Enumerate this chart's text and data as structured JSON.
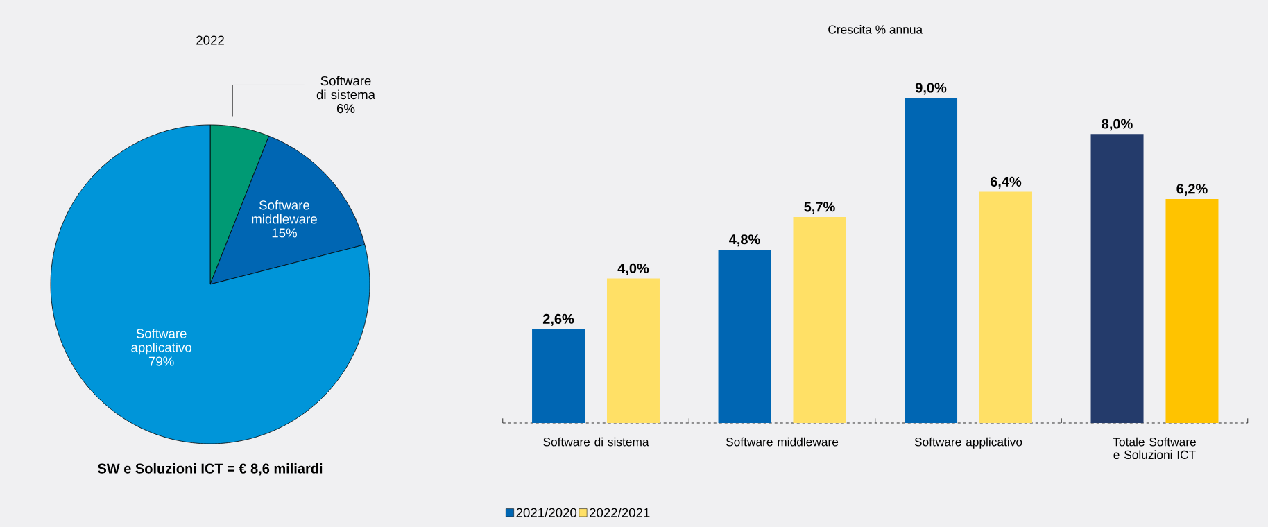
{
  "chart_data": [
    {
      "type": "pie",
      "title": "2022",
      "categories": [
        "Software di sistema",
        "Software middleware",
        "Software applicativo"
      ],
      "values": [
        6,
        15,
        79
      ],
      "value_labels": [
        "6%",
        "15%",
        "79%"
      ],
      "colors": [
        "#009a74",
        "#0066b3",
        "#0095d9"
      ],
      "annotations": [
        "SW e Soluzioni ICT = € 8,6 miliardi"
      ]
    },
    {
      "type": "bar",
      "title": "Crescita % annua",
      "categories": [
        "Software di sistema",
        "Software middleware",
        "Software applicativo",
        "Totale Software e Soluzioni ICT"
      ],
      "legend": "bottom",
      "series": [
        {
          "name": "2021/2020",
          "color": "#0066b3",
          "colors": [
            "#0066b3",
            "#0066b3",
            "#0066b3",
            "#243b6b"
          ],
          "values": [
            2.6,
            4.8,
            9.0,
            8.0
          ],
          "value_labels": [
            "2,6%",
            "4,8%",
            "9,0%",
            "8,0%"
          ]
        },
        {
          "name": "2022/2021",
          "color": "#ffe066",
          "colors": [
            "#ffe066",
            "#ffe066",
            "#ffe066",
            "#ffc300"
          ],
          "values": [
            4.0,
            5.7,
            6.4,
            6.2
          ],
          "value_labels": [
            "4,0%",
            "5,7%",
            "6,4%",
            "6,2%"
          ]
        }
      ]
    }
  ]
}
